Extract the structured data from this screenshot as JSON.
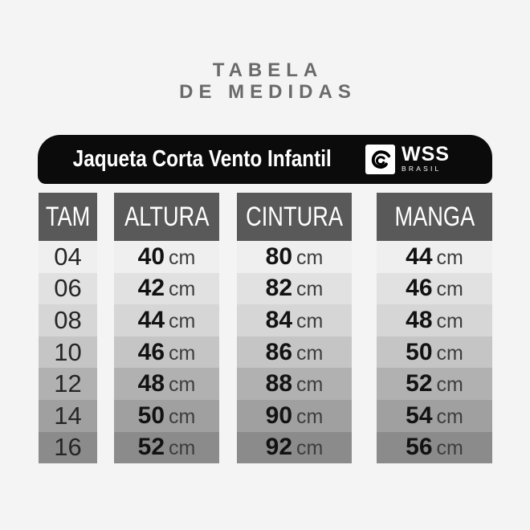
{
  "title": {
    "line1": "TABELA",
    "line2": "DE MEDIDAS"
  },
  "banner": {
    "product": "Jaqueta Corta Vento Infantil",
    "brand": "WSS",
    "brand_sub": "BRASIL",
    "bg_color": "#0b0b0b",
    "logo_icon": "wave-swirl-icon"
  },
  "table": {
    "unit": "cm",
    "header_bg": "#59595a",
    "header_text_color": "#ffffff",
    "columns": [
      {
        "key": "tam",
        "label": "TAM"
      },
      {
        "key": "altura",
        "label": "ALTURA"
      },
      {
        "key": "cintura",
        "label": "CINTURA"
      },
      {
        "key": "manga",
        "label": "MANGA"
      }
    ],
    "rows": [
      {
        "tam": "04",
        "altura": "40",
        "cintura": "80",
        "manga": "44",
        "bg": "#efeff0"
      },
      {
        "tam": "06",
        "altura": "42",
        "cintura": "82",
        "manga": "46",
        "bg": "#e1e1e2"
      },
      {
        "tam": "08",
        "altura": "44",
        "cintura": "84",
        "manga": "48",
        "bg": "#d6d6d7"
      },
      {
        "tam": "10",
        "altura": "46",
        "cintura": "86",
        "manga": "50",
        "bg": "#c5c5c6"
      },
      {
        "tam": "12",
        "altura": "48",
        "cintura": "88",
        "manga": "52",
        "bg": "#b1b1b2"
      },
      {
        "tam": "14",
        "altura": "50",
        "cintura": "90",
        "manga": "54",
        "bg": "#a0a0a1"
      },
      {
        "tam": "16",
        "altura": "52",
        "cintura": "92",
        "manga": "56",
        "bg": "#8b8b8c"
      }
    ]
  },
  "chart_data": {
    "type": "table",
    "title": "TABELA DE MEDIDAS",
    "subtitle": "Jaqueta Corta Vento Infantil",
    "columns": [
      "TAM",
      "ALTURA",
      "CINTURA",
      "MANGA"
    ],
    "rows": [
      [
        "04",
        "40 cm",
        "80 cm",
        "44 cm"
      ],
      [
        "06",
        "42 cm",
        "82 cm",
        "46 cm"
      ],
      [
        "08",
        "44 cm",
        "84 cm",
        "48 cm"
      ],
      [
        "10",
        "46 cm",
        "86 cm",
        "50 cm"
      ],
      [
        "12",
        "48 cm",
        "88 cm",
        "52 cm"
      ],
      [
        "14",
        "50 cm",
        "90 cm",
        "54 cm"
      ],
      [
        "16",
        "52 cm",
        "92 cm",
        "56 cm"
      ]
    ]
  }
}
